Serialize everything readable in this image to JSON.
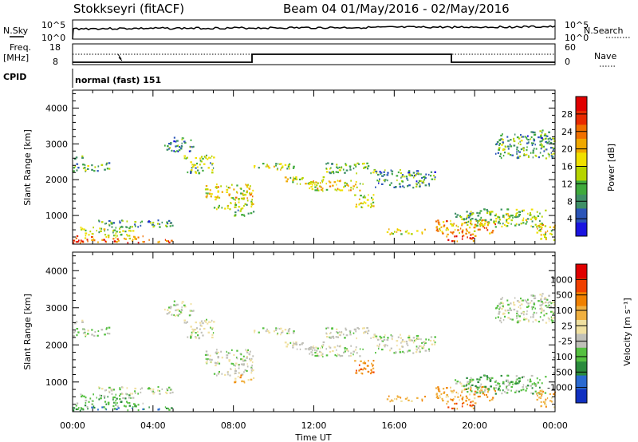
{
  "header": {
    "station": "Stokkseyri (fitACF)",
    "beam_info": "Beam 04 01/May/2016 - 02/May/2016"
  },
  "top_panels": {
    "nsky_label": "N.Sky",
    "nsky_ticks": [
      "10^5",
      "10^0"
    ],
    "nsearch_label": "N.Search",
    "nsearch_ticks": [
      "10^5",
      "10^0"
    ],
    "freq_label_1": "Freq.",
    "freq_label_2": "[MHz]",
    "freq_ticks": [
      "18",
      "8"
    ],
    "nave_label": "Nave",
    "nave_ticks": [
      "60",
      "0"
    ],
    "cpid_label": "CPID",
    "cpid_value": "normal (fast) 151"
  },
  "chart_data": [
    {
      "type": "heatmap",
      "title": "",
      "xlabel": "",
      "ylabel": "Slant Range [km]",
      "yticks": [
        "1000",
        "2000",
        "3000",
        "4000"
      ],
      "ylim": [
        200,
        4500
      ],
      "colorbar_label": "Power [dB]",
      "colorbar_ticks": [
        "28",
        "24",
        "20",
        "16",
        "12",
        "8",
        "4"
      ],
      "colors": [
        "#1a14e0",
        "#2b55b8",
        "#3e8f66",
        "#3faa3c",
        "#b6d400",
        "#f0e000",
        "#f0a800",
        "#f07000",
        "#e82a00",
        "#e00000"
      ]
    },
    {
      "type": "heatmap",
      "title": "",
      "xlabel": "Time UT",
      "ylabel": "Slant Range [km]",
      "xticks": [
        "00:00",
        "04:00",
        "08:00",
        "12:00",
        "16:00",
        "20:00",
        "00:00"
      ],
      "yticks": [
        "1000",
        "2000",
        "3000",
        "4000"
      ],
      "ylim": [
        200,
        4500
      ],
      "colorbar_label": "Velocity [m s⁻¹]",
      "colorbar_ticks": [
        "1000",
        "500",
        "100",
        "25",
        "-25",
        "-100",
        "-500",
        "-1000"
      ],
      "colors": [
        "#1030c0",
        "#2a6ad0",
        "#2a8a3c",
        "#55c040",
        "#c0c0b8",
        "#f0e0a0",
        "#f0b040",
        "#f08000",
        "#f04000",
        "#e00000"
      ]
    }
  ]
}
